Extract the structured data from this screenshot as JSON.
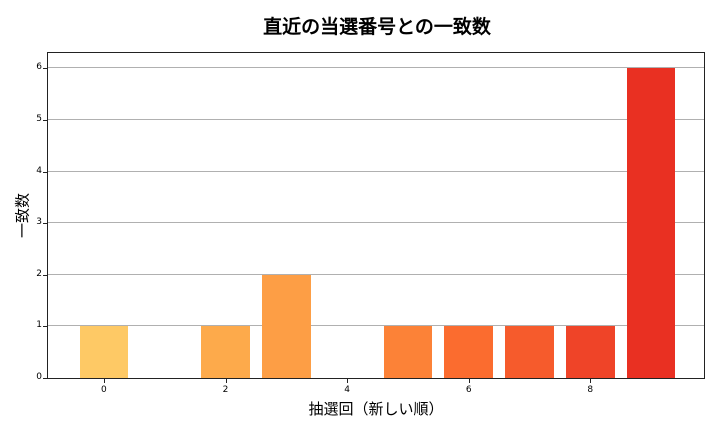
{
  "chart_data": {
    "type": "bar",
    "title": "直近の当選番号との一致数",
    "xlabel": "抽選回（新しい順）",
    "ylabel": "一致数",
    "categories": [
      0,
      1,
      2,
      3,
      4,
      5,
      6,
      7,
      8,
      9
    ],
    "values": [
      1,
      0,
      1,
      2,
      0,
      1,
      1,
      1,
      1,
      6
    ],
    "colors": [
      "#fec965",
      "#feb853",
      "#fdaa4b",
      "#fd9e45",
      "#fc8d3c",
      "#fc8237",
      "#fb6c2f",
      "#f65b2c",
      "#ef4428",
      "#e93022"
    ],
    "xticks": [
      0,
      2,
      4,
      6,
      8
    ],
    "yticks": [
      0,
      1,
      2,
      3,
      4,
      5,
      6
    ],
    "xlim": [
      -0.92,
      9.87
    ],
    "ylim": [
      0,
      6.3
    ],
    "grid": "y",
    "legend": null
  }
}
